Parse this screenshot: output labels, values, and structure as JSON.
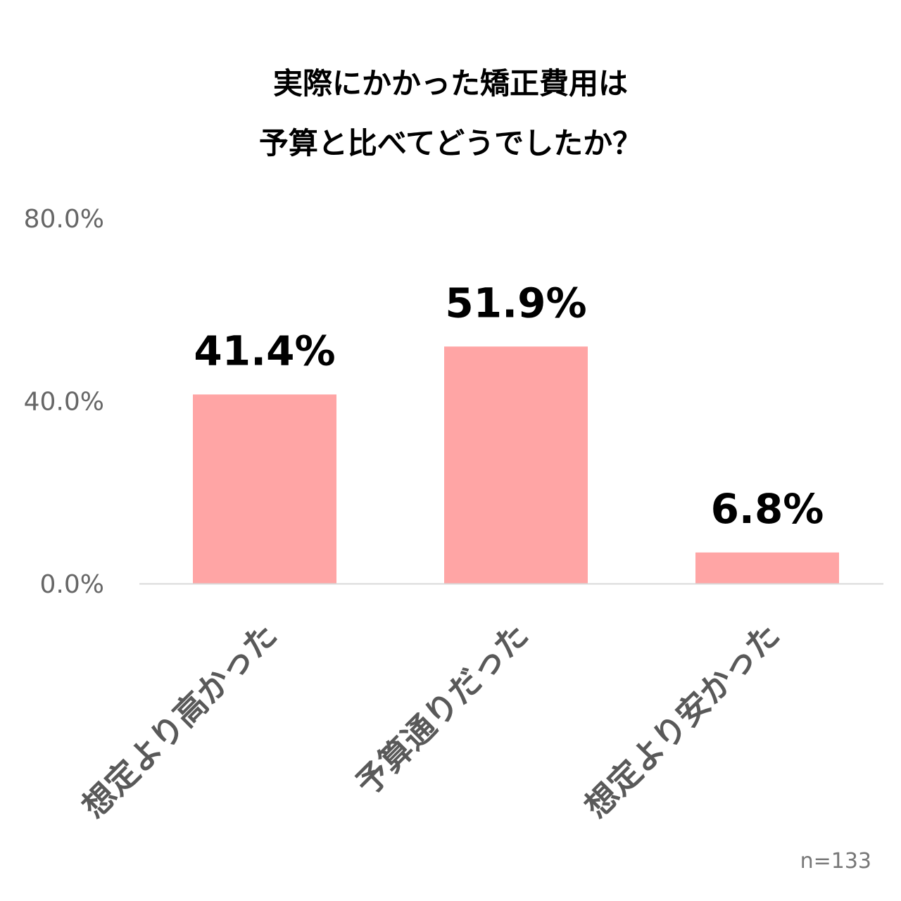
{
  "chart_data": {
    "type": "bar",
    "title_lines": [
      "実際にかかった矯正費用は",
      "予算と比べてどうでしたか？"
    ],
    "categories": [
      "想定より高かった",
      "予算通りだった",
      "想定より安かった"
    ],
    "values": [
      41.4,
      51.9,
      6.8
    ],
    "data_labels": [
      "41.4%",
      "51.9%",
      "6.8%"
    ],
    "yticks": [
      "0.0%",
      "40.0%",
      "80.0%"
    ],
    "ytick_values": [
      0,
      40,
      80
    ],
    "ylim": [
      0,
      80
    ],
    "grid": false,
    "bar_color": "#FFA5A5",
    "axis_color": "#D9D9D9"
  },
  "note": "n=133"
}
